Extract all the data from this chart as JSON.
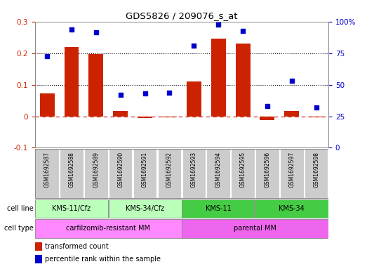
{
  "title": "GDS5826 / 209076_s_at",
  "samples": [
    "GSM1692587",
    "GSM1692588",
    "GSM1692589",
    "GSM1692590",
    "GSM1692591",
    "GSM1692592",
    "GSM1692593",
    "GSM1692594",
    "GSM1692595",
    "GSM1692596",
    "GSM1692597",
    "GSM1692598"
  ],
  "transformed_count": [
    0.072,
    0.22,
    0.197,
    0.017,
    -0.005,
    -0.003,
    0.11,
    0.247,
    0.232,
    -0.012,
    0.017,
    -0.004
  ],
  "percentile_rank_pct": [
    73,
    94,
    92,
    42,
    43,
    44,
    81,
    98,
    93,
    33,
    53,
    32
  ],
  "left_ylim": [
    -0.1,
    0.3
  ],
  "right_ylim": [
    0,
    100
  ],
  "left_yticks": [
    -0.1,
    0.0,
    0.1,
    0.2,
    0.3
  ],
  "left_yticklabels": [
    "-0.1",
    "0",
    "0.1",
    "0.2",
    "0.3"
  ],
  "right_yticks": [
    0,
    25,
    50,
    75,
    100
  ],
  "right_yticklabels": [
    "0",
    "25",
    "50",
    "75",
    "100%"
  ],
  "hline_values": [
    0.1,
    0.2
  ],
  "zero_line_value": 0.0,
  "bar_color": "#CC2200",
  "scatter_color": "#0000CC",
  "bar_width": 0.6,
  "cell_line_groups": [
    {
      "label": "KMS-11/Cfz",
      "start": 0,
      "end": 3,
      "color": "#BBFFBB"
    },
    {
      "label": "KMS-34/Cfz",
      "start": 3,
      "end": 6,
      "color": "#BBFFBB"
    },
    {
      "label": "KMS-11",
      "start": 6,
      "end": 9,
      "color": "#44CC44"
    },
    {
      "label": "KMS-34",
      "start": 9,
      "end": 12,
      "color": "#44CC44"
    }
  ],
  "cell_type_groups": [
    {
      "label": "carfilzomib-resistant MM",
      "start": 0,
      "end": 6,
      "color": "#FF88FF"
    },
    {
      "label": "parental MM",
      "start": 6,
      "end": 12,
      "color": "#EE66EE"
    }
  ],
  "legend_items": [
    {
      "color": "#CC2200",
      "label": "transformed count"
    },
    {
      "color": "#0000CC",
      "label": "percentile rank within the sample"
    }
  ],
  "bg_color": "#FFFFFF",
  "plot_bg_color": "#FFFFFF",
  "sample_box_color": "#CCCCCC",
  "spine_color": "#888888",
  "zero_line_color": "#CC3333"
}
